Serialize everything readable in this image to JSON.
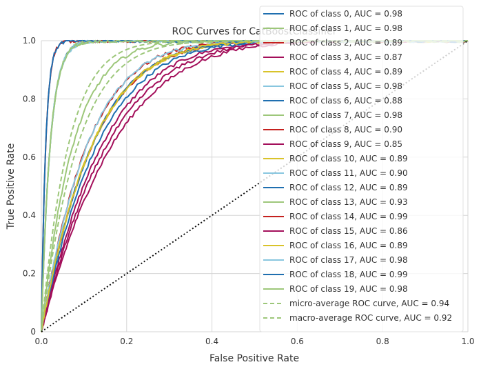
{
  "chart_data": {
    "type": "line",
    "title": "ROC Curves for CatBoostClassifier",
    "xlabel": "False Positive Rate",
    "ylabel": "True Positive Rate",
    "xlim": [
      0,
      1
    ],
    "ylim": [
      0,
      1
    ],
    "x_ticks": [
      "0.0",
      "0.2",
      "0.4",
      "0.6",
      "0.8",
      "1.0"
    ],
    "y_ticks": [
      "0",
      "0.2",
      "0.4",
      "0.6",
      "0.8",
      "1.0"
    ],
    "grid": true,
    "legend_position": "top-right",
    "diagonal": {
      "style": "dotted",
      "color": "#111111",
      "points": [
        [
          0,
          0
        ],
        [
          1,
          1
        ]
      ]
    },
    "series": [
      {
        "name": "ROC of class 0, AUC = 0.98",
        "color": "#1f6fb0",
        "style": "solid",
        "auc": 0.98
      },
      {
        "name": "ROC of class 1, AUC = 0.98",
        "color": "#9dc77a",
        "style": "solid",
        "auc": 0.98
      },
      {
        "name": "ROC of class 2, AUC = 0.89",
        "color": "#c5201e",
        "style": "solid",
        "auc": 0.89
      },
      {
        "name": "ROC of class 3, AUC = 0.87",
        "color": "#a30e5a",
        "style": "solid",
        "auc": 0.87
      },
      {
        "name": "ROC of class 4, AUC = 0.89",
        "color": "#d9c32a",
        "style": "solid",
        "auc": 0.89
      },
      {
        "name": "ROC of class 5, AUC = 0.98",
        "color": "#88c6df",
        "style": "solid",
        "auc": 0.98
      },
      {
        "name": "ROC of class 6, AUC = 0.88",
        "color": "#1f6fb0",
        "style": "solid",
        "auc": 0.88
      },
      {
        "name": "ROC of class 7, AUC = 0.98",
        "color": "#9dc77a",
        "style": "solid",
        "auc": 0.98
      },
      {
        "name": "ROC of class 8, AUC = 0.90",
        "color": "#c5201e",
        "style": "solid",
        "auc": 0.9
      },
      {
        "name": "ROC of class 9, AUC = 0.85",
        "color": "#a30e5a",
        "style": "solid",
        "auc": 0.85
      },
      {
        "name": "ROC of class 10, AUC = 0.89",
        "color": "#d9c32a",
        "style": "solid",
        "auc": 0.89
      },
      {
        "name": "ROC of class 11, AUC = 0.90",
        "color": "#88c6df",
        "style": "solid",
        "auc": 0.9
      },
      {
        "name": "ROC of class 12, AUC = 0.89",
        "color": "#1f6fb0",
        "style": "solid",
        "auc": 0.89
      },
      {
        "name": "ROC of class 13, AUC = 0.93",
        "color": "#9dc77a",
        "style": "solid",
        "auc": 0.93
      },
      {
        "name": "ROC of class 14, AUC = 0.99",
        "color": "#c5201e",
        "style": "solid",
        "auc": 0.99
      },
      {
        "name": "ROC of class 15, AUC = 0.86",
        "color": "#a30e5a",
        "style": "solid",
        "auc": 0.86
      },
      {
        "name": "ROC of class 16, AUC = 0.89",
        "color": "#d9c32a",
        "style": "solid",
        "auc": 0.89
      },
      {
        "name": "ROC of class 17, AUC = 0.98",
        "color": "#88c6df",
        "style": "solid",
        "auc": 0.98
      },
      {
        "name": "ROC of class 18, AUC = 0.99",
        "color": "#1f6fb0",
        "style": "solid",
        "auc": 0.99
      },
      {
        "name": "ROC of class 19, AUC = 0.98",
        "color": "#9dc77a",
        "style": "solid",
        "auc": 0.98
      },
      {
        "name": "micro-average ROC curve, AUC = 0.94",
        "color": "#9dc77a",
        "style": "dashed",
        "auc": 0.94
      },
      {
        "name": "macro-average ROC curve, AUC = 0.92",
        "color": "#9dc77a",
        "style": "dashed",
        "auc": 0.92
      }
    ]
  }
}
